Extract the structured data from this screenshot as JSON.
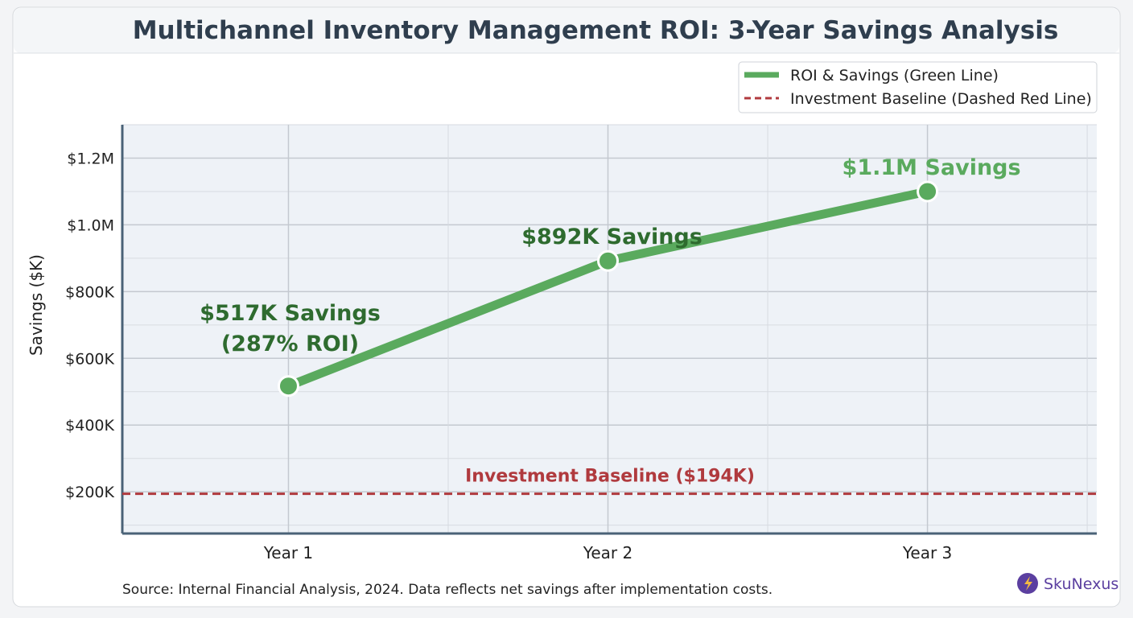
{
  "chart_data": {
    "type": "line",
    "title": "Multichannel Inventory Management ROI: 3-Year Savings Analysis",
    "xlabel": "",
    "ylabel": "Savings ($K)",
    "categories": [
      "Year 1",
      "Year 2",
      "Year 3"
    ],
    "x_range": [
      0.48,
      3.53
    ],
    "ylim": [
      75,
      1300
    ],
    "y_ticks": [
      200,
      400,
      600,
      800,
      1000,
      1200
    ],
    "y_tick_labels": [
      "$200K",
      "$400K",
      "$600K",
      "$800K",
      "$1.0M",
      "$1.2M"
    ],
    "grid": true,
    "series": [
      {
        "name": "ROI & Savings (Green Line)",
        "values": [
          517,
          892,
          1100
        ],
        "color": "#5aaa5e"
      }
    ],
    "annotations": [
      {
        "lines": [
          "$517K Savings",
          "(287% ROI)"
        ],
        "x": 1,
        "color": "#2e6b2f"
      },
      {
        "lines": [
          "$892K Savings"
        ],
        "x": 2,
        "color": "#2e6b2f"
      },
      {
        "lines": [
          "$1.1M Savings"
        ],
        "x": 3,
        "color": "#5aaa5e"
      }
    ],
    "baseline": {
      "name": "Investment Baseline (Dashed Red Line)",
      "value": 194,
      "label": "Investment Baseline ($194K)",
      "color": "#b03a3e"
    },
    "legend_position": "top-right"
  },
  "footer": {
    "source": "Source: Internal Financial Analysis, 2024. Data reflects net savings after implementation costs.",
    "brand": "SkuNexus",
    "brand_color": "#5b3fa0"
  }
}
